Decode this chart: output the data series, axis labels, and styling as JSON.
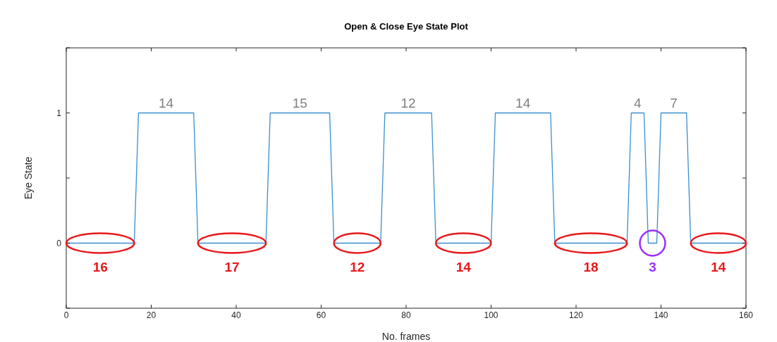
{
  "chart_data": {
    "type": "line",
    "title": "Open & Close Eye State Plot",
    "xlabel": "No. frames",
    "ylabel": "Eye State",
    "x": [
      0,
      16,
      17,
      30,
      31,
      47,
      48,
      62,
      63,
      74,
      75,
      86,
      87,
      100,
      101,
      114,
      115,
      132,
      133,
      136,
      137,
      139,
      140,
      146,
      147,
      160
    ],
    "series": [
      {
        "color": "#3b8fd0",
        "values": [
          0,
          0,
          1,
          1,
          0,
          0,
          1,
          1,
          0,
          0,
          1,
          1,
          0,
          0,
          1,
          1,
          0,
          0,
          1,
          1,
          0,
          0,
          1,
          1,
          0,
          0
        ]
      }
    ],
    "xlim": [
      0,
      160
    ],
    "xticks": [
      0,
      20,
      40,
      60,
      80,
      100,
      120,
      140,
      160
    ],
    "ylim": [
      -0.5,
      1.5
    ],
    "yticks": [
      {
        "value": -0.5,
        "label": null
      },
      0,
      {
        "value": 0.5,
        "label": null
      },
      1,
      {
        "value": 1.5,
        "label": null
      }
    ],
    "marker": "none",
    "line_style": "solid",
    "annotations": [
      {
        "text": "14",
        "x": 23.5,
        "y": 1
      },
      {
        "text": "15",
        "x": 55,
        "y": 1
      },
      {
        "text": "12",
        "x": 80.5,
        "y": 1
      },
      {
        "text": "14",
        "x": 107.5,
        "y": 1
      },
      {
        "text": "4",
        "x": 134.5,
        "y": 1
      },
      {
        "text": "7",
        "x": 143,
        "y": 1
      },
      {
        "text": "16",
        "x": 8,
        "y": 0
      },
      {
        "text": "17",
        "x": 39,
        "y": 0
      },
      {
        "text": "12",
        "x": 68.5,
        "y": 0
      },
      {
        "text": "14",
        "x": 93.5,
        "y": 0
      },
      {
        "text": "18",
        "x": 123.5,
        "y": 0
      },
      {
        "text": "3",
        "x": 138,
        "y": 0
      },
      {
        "text": "14",
        "x": 153.5,
        "y": 0
      }
    ]
  }
}
